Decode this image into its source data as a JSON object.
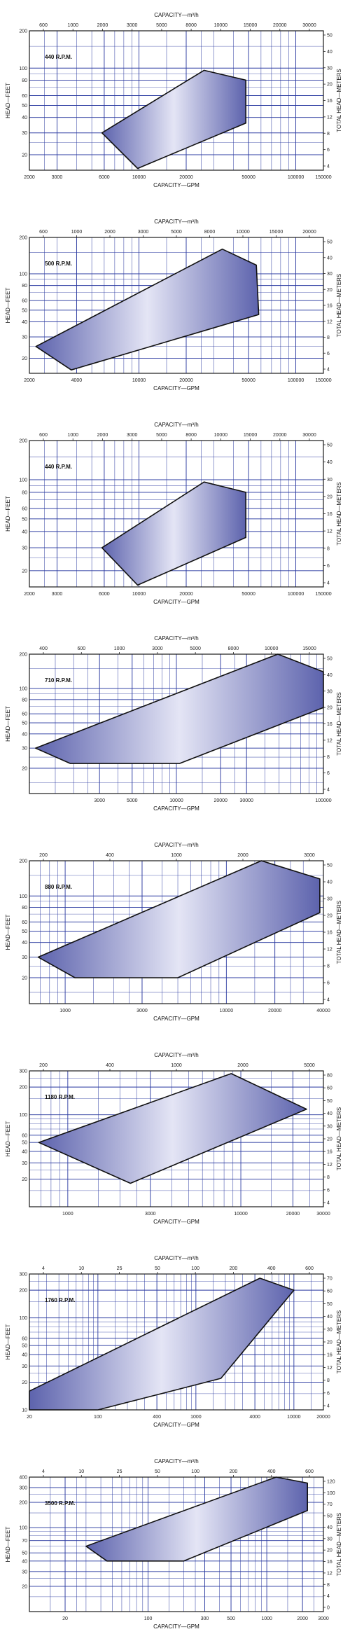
{
  "colors": {
    "grid": "#2b3aa0",
    "frame": "#1a1a1a",
    "fill_edge": "#5d63ad",
    "fill_center": "#e4e5f5"
  },
  "chart_data": [
    {
      "type": "area",
      "title": "440 R.P.M.",
      "xlabel_top": "CAPACITY—m³/h",
      "xlabel": "CAPACITY—GPM",
      "ylabel": "HEAD—FEET",
      "ylabel_right": "TOTAL HEAD—METERS",
      "x_scale": "log",
      "y_scale": "log",
      "xlim": [
        2000,
        150000
      ],
      "ylim": [
        15,
        200
      ],
      "x_ticks": [
        "2000",
        "3000",
        "6000",
        "10000",
        "20000",
        "50000",
        "100000",
        "150000"
      ],
      "x_top_ticks": [
        "600",
        "1000",
        "2000",
        "3000",
        "5000",
        "8000",
        "10000",
        "15000",
        "20000",
        "30000"
      ],
      "y_ticks": [
        "200",
        "100",
        "80",
        "60",
        "50",
        "40",
        "30",
        "20"
      ],
      "y_right_ticks": [
        "50",
        "40",
        "30",
        "20",
        "16",
        "12",
        "8",
        "6",
        "4"
      ],
      "polygon": [
        [
          5800,
          30
        ],
        [
          26000,
          96
        ],
        [
          48000,
          80
        ],
        [
          48000,
          36
        ],
        [
          9800,
          15.5
        ]
      ]
    },
    {
      "type": "area",
      "title": "500 R.P.M.",
      "xlabel_top": "CAPACITY—m³/h",
      "xlabel": "CAPACITY—GPM",
      "ylabel": "HEAD—FEET",
      "ylabel_right": "TOTAL HEAD—METERS",
      "x_scale": "log",
      "y_scale": "log",
      "xlim": [
        2000,
        150000
      ],
      "ylim": [
        15,
        200
      ],
      "x_ticks": [
        "2000",
        "4000",
        "10000",
        "20000",
        "50000",
        "100000",
        "150000"
      ],
      "x_top_ticks": [
        "600",
        "1000",
        "2000",
        "3000",
        "5000",
        "8000",
        "10000",
        "15000",
        "20000"
      ],
      "y_ticks": [
        "200",
        "100",
        "80",
        "60",
        "50",
        "40",
        "30",
        "20"
      ],
      "y_right_ticks": [
        "50",
        "40",
        "30",
        "20",
        "16",
        "12",
        "8",
        "6",
        "4"
      ],
      "polygon": [
        [
          2200,
          25
        ],
        [
          34000,
          160
        ],
        [
          56000,
          118
        ],
        [
          58000,
          46
        ],
        [
          3700,
          16
        ]
      ]
    },
    {
      "type": "area",
      "title": "440 R.P.M.",
      "xlabel_top": "CAPACITY—m³/h",
      "xlabel": "CAPACITY—GPM",
      "ylabel": "HEAD—FEET",
      "ylabel_right": "TOTAL HEAD—METERS",
      "x_scale": "log",
      "y_scale": "log",
      "xlim": [
        2000,
        150000
      ],
      "ylim": [
        15,
        200
      ],
      "x_ticks": [
        "2000",
        "3000",
        "6000",
        "10000",
        "20000",
        "50000",
        "100000",
        "150000"
      ],
      "x_top_ticks": [
        "600",
        "1000",
        "2000",
        "3000",
        "5000",
        "8000",
        "10000",
        "15000",
        "20000",
        "30000"
      ],
      "y_ticks": [
        "200",
        "100",
        "80",
        "60",
        "50",
        "40",
        "30",
        "20"
      ],
      "y_right_ticks": [
        "50",
        "40",
        "30",
        "20",
        "16",
        "12",
        "8",
        "6",
        "4"
      ],
      "polygon": [
        [
          5800,
          30
        ],
        [
          26000,
          96
        ],
        [
          48000,
          80
        ],
        [
          48000,
          36
        ],
        [
          9800,
          15.5
        ]
      ]
    },
    {
      "type": "area",
      "title": "710 R.P.M.",
      "xlabel_top": "CAPACITY—m³/h",
      "xlabel": "CAPACITY—GPM",
      "ylabel": "HEAD—FEET",
      "ylabel_right": "TOTAL HEAD—METERS",
      "x_scale": "log",
      "y_scale": "log",
      "xlim": [
        1000,
        100000
      ],
      "ylim": [
        12,
        200
      ],
      "x_ticks": [
        "3000",
        "5000",
        "10000",
        "20000",
        "30000",
        "100000"
      ],
      "x_top_ticks": [
        "400",
        "600",
        "1000",
        "3000",
        "5000",
        "8000",
        "10000",
        "15000"
      ],
      "y_ticks": [
        "200",
        "100",
        "80",
        "60",
        "50",
        "40",
        "30",
        "20"
      ],
      "y_right_ticks": [
        "50",
        "40",
        "30",
        "20",
        "16",
        "12",
        "8",
        "6",
        "4"
      ],
      "polygon": [
        [
          1100,
          30
        ],
        [
          49000,
          200
        ],
        [
          100000,
          140
        ],
        [
          100000,
          68
        ],
        [
          10500,
          22
        ],
        [
          1900,
          22
        ]
      ]
    },
    {
      "type": "area",
      "title": "880 R.P.M.",
      "xlabel_top": "CAPACITY—m³/h",
      "xlabel": "CAPACITY—GPM",
      "ylabel": "HEAD—FEET",
      "ylabel_right": "TOTAL HEAD—METERS",
      "x_scale": "log",
      "y_scale": "log",
      "xlim": [
        600,
        40000
      ],
      "ylim": [
        12,
        200
      ],
      "x_ticks": [
        "1000",
        "3000",
        "10000",
        "20000",
        "40000"
      ],
      "x_top_ticks": [
        "200",
        "400",
        "1000",
        "2000",
        "3000"
      ],
      "y_ticks": [
        "200",
        "100",
        "80",
        "60",
        "50",
        "40",
        "30",
        "20"
      ],
      "y_right_ticks": [
        "50",
        "40",
        "30",
        "20",
        "16",
        "12",
        "8",
        "6",
        "4"
      ],
      "polygon": [
        [
          680,
          30
        ],
        [
          16500,
          200
        ],
        [
          38000,
          140
        ],
        [
          38000,
          72
        ],
        [
          5000,
          20
        ],
        [
          1150,
          20
        ]
      ]
    },
    {
      "type": "area",
      "title": "1180 R.P.M.",
      "xlabel_top": "CAPACITY—m³/h",
      "xlabel": "CAPACITY—GPM",
      "ylabel": "HEAD—FEET",
      "ylabel_right": "TOTAL HEAD—METERS",
      "x_scale": "log",
      "y_scale": "log",
      "xlim": [
        600,
        30000
      ],
      "ylim": [
        10,
        300
      ],
      "x_ticks": [
        "1000",
        "3000",
        "10000",
        "20000",
        "30000"
      ],
      "x_top_ticks": [
        "200",
        "400",
        "1000",
        "2000",
        "5000"
      ],
      "y_ticks": [
        "300",
        "200",
        "100",
        "60",
        "50",
        "40",
        "30",
        "20"
      ],
      "y_right_ticks": [
        "80",
        "60",
        "50",
        "40",
        "30",
        "20",
        "16",
        "12",
        "8",
        "6",
        "4"
      ],
      "polygon": [
        [
          680,
          50
        ],
        [
          8800,
          280
        ],
        [
          24000,
          115
        ],
        [
          2300,
          18
        ]
      ]
    },
    {
      "type": "area",
      "title": "1760 R.P.M.",
      "xlabel_top": "CAPACITY—m³/h",
      "xlabel": "CAPACITY—GPM",
      "ylabel": "HEAD—FEET",
      "ylabel_right": "TOTAL HEAD—METERS",
      "x_scale": "log",
      "y_scale": "log",
      "xlim": [
        20,
        20000
      ],
      "ylim": [
        10,
        300
      ],
      "x_ticks": [
        "20",
        "100",
        "400",
        "1000",
        "4000",
        "10000",
        "20000"
      ],
      "x_top_ticks": [
        "4",
        "10",
        "25",
        "50",
        "100",
        "200",
        "400",
        "600"
      ],
      "y_ticks": [
        "300",
        "200",
        "100",
        "60",
        "50",
        "40",
        "30",
        "20",
        "10"
      ],
      "y_right_ticks": [
        "70",
        "60",
        "50",
        "40",
        "30",
        "20",
        "16",
        "12",
        "8",
        "6",
        "4"
      ],
      "polygon": [
        [
          20,
          16
        ],
        [
          4500,
          270
        ],
        [
          10000,
          200
        ],
        [
          1800,
          22
        ],
        [
          100,
          10
        ],
        [
          20,
          10
        ]
      ]
    },
    {
      "type": "area",
      "title": "3500 R.P.M.",
      "xlabel_top": "CAPACITY—m³/h",
      "xlabel": "CAPACITY—GPM",
      "ylabel": "HEAD—FEET",
      "ylabel_right": "TOTAL HEAD—METERS",
      "x_scale": "log",
      "y_scale": "log",
      "xlim": [
        10,
        3000
      ],
      "ylim": [
        10,
        400
      ],
      "x_ticks": [
        "20",
        "100",
        "300",
        "500",
        "1000",
        "2000",
        "3000"
      ],
      "x_top_ticks": [
        "4",
        "10",
        "25",
        "50",
        "100",
        "200",
        "400",
        "600"
      ],
      "y_ticks": [
        "400",
        "300",
        "200",
        "100",
        "70",
        "50",
        "40",
        "30",
        "20"
      ],
      "y_right_ticks": [
        "120",
        "100",
        "70",
        "50",
        "40",
        "30",
        "20",
        "16",
        "12",
        "8",
        "4",
        "0"
      ],
      "polygon": [
        [
          30,
          60
        ],
        [
          1200,
          400
        ],
        [
          2200,
          340
        ],
        [
          2200,
          160
        ],
        [
          200,
          40
        ],
        [
          45,
          40
        ]
      ]
    }
  ]
}
